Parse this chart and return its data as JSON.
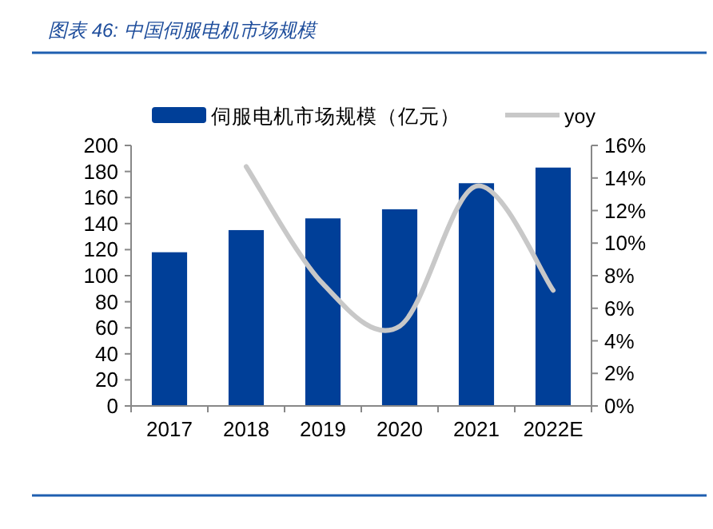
{
  "chart_data": {
    "type": "bar",
    "title": "图表 46:  中国伺服电机市场规模",
    "categories": [
      "2017",
      "2018",
      "2019",
      "2020",
      "2021",
      "2022E"
    ],
    "series": [
      {
        "name": "伺服电机市场规模（亿元）",
        "color": "#003f98",
        "values": [
          118,
          135,
          144,
          151,
          171,
          183
        ]
      },
      {
        "name": "yoy",
        "type": "line",
        "axis": "y2",
        "color": "#c8c8c8",
        "values": [
          null,
          14.7,
          7.5,
          4.9,
          13.5,
          7.1
        ]
      }
    ],
    "ylim": [
      0,
      200
    ],
    "yticks": [
      0,
      20,
      40,
      60,
      80,
      100,
      120,
      140,
      160,
      180,
      200
    ],
    "y2lim": [
      0,
      16
    ],
    "y2ticks": [
      {
        "value": 0,
        "label": "0%"
      },
      {
        "value": 2,
        "label": "2%"
      },
      {
        "value": 4,
        "label": "4%"
      },
      {
        "value": 6,
        "label": "6%"
      },
      {
        "value": 8,
        "label": "8%"
      },
      {
        "value": 10,
        "label": "10%"
      },
      {
        "value": 12,
        "label": "12%"
      },
      {
        "value": 14,
        "label": "14%"
      },
      {
        "value": 16,
        "label": "16%"
      }
    ],
    "legend": "top",
    "grid": false
  }
}
